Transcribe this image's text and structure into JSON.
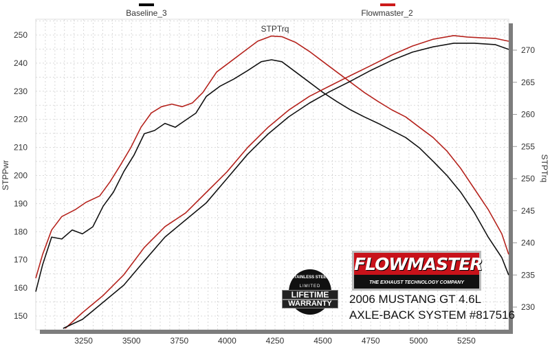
{
  "chart_data": {
    "type": "line",
    "xlabel": "",
    "ylabel_left": "STPPwr",
    "ylabel_right": "STPTrq",
    "annotation": "STPTrq",
    "xlim": [
      3000,
      5470
    ],
    "ylim_left": [
      145,
      255
    ],
    "ylim_right": [
      227,
      275
    ],
    "x_ticks": [
      "3250",
      "3500",
      "3750",
      "4000",
      "4250",
      "4500",
      "4750",
      "5000",
      "5250"
    ],
    "y_ticks_left": [
      "150",
      "160",
      "170",
      "180",
      "190",
      "200",
      "210",
      "220",
      "230",
      "240",
      "250"
    ],
    "y_ticks_right": [
      "230",
      "235",
      "240",
      "245",
      "250",
      "255",
      "260",
      "265",
      "270"
    ],
    "grid": true,
    "legend": {
      "position": "top",
      "entries": [
        {
          "name": "Baseline_3",
          "color": "#000000"
        },
        {
          "name": "Flowmaster_2",
          "color": "#cc1a1a"
        }
      ]
    },
    "series": [
      {
        "name": "Flowmaster_2",
        "quantity": "STPTrq",
        "axis": "right",
        "color": "#b5221c",
        "points": [
          [
            3000,
            234.5
          ],
          [
            3036,
            238.2
          ],
          [
            3083,
            242.0
          ],
          [
            3136,
            244.1
          ],
          [
            3208,
            245.2
          ],
          [
            3262,
            246.3
          ],
          [
            3334,
            247.3
          ],
          [
            3388,
            249.5
          ],
          [
            3442,
            252.1
          ],
          [
            3496,
            254.8
          ],
          [
            3550,
            258.0
          ],
          [
            3603,
            260.2
          ],
          [
            3657,
            261.2
          ],
          [
            3711,
            261.6
          ],
          [
            3765,
            261.2
          ],
          [
            3819,
            261.8
          ],
          [
            3873,
            263.4
          ],
          [
            3945,
            266.6
          ],
          [
            4017,
            268.2
          ],
          [
            4088,
            269.8
          ],
          [
            4160,
            271.4
          ],
          [
            4232,
            272.2
          ],
          [
            4286,
            272.1
          ],
          [
            4358,
            271.2
          ],
          [
            4430,
            269.8
          ],
          [
            4501,
            268.2
          ],
          [
            4573,
            266.6
          ],
          [
            4645,
            265.0
          ],
          [
            4717,
            263.4
          ],
          [
            4789,
            262.0
          ],
          [
            4861,
            260.7
          ],
          [
            4933,
            259.6
          ],
          [
            5004,
            258.0
          ],
          [
            5076,
            256.4
          ],
          [
            5148,
            254.3
          ],
          [
            5220,
            251.6
          ],
          [
            5292,
            248.4
          ],
          [
            5364,
            245.2
          ],
          [
            5435,
            241.4
          ],
          [
            5471,
            238.2
          ]
        ]
      },
      {
        "name": "Baseline_3",
        "quantity": "STPTrq",
        "axis": "right",
        "color": "#111111",
        "points": [
          [
            3000,
            232.4
          ],
          [
            3036,
            236.6
          ],
          [
            3083,
            240.9
          ],
          [
            3136,
            240.6
          ],
          [
            3190,
            242.0
          ],
          [
            3244,
            241.4
          ],
          [
            3298,
            242.5
          ],
          [
            3352,
            245.7
          ],
          [
            3406,
            247.9
          ],
          [
            3460,
            251.1
          ],
          [
            3514,
            253.7
          ],
          [
            3567,
            257.0
          ],
          [
            3621,
            257.5
          ],
          [
            3675,
            258.6
          ],
          [
            3729,
            258.0
          ],
          [
            3783,
            259.1
          ],
          [
            3837,
            260.2
          ],
          [
            3891,
            262.8
          ],
          [
            3963,
            264.4
          ],
          [
            4035,
            265.5
          ],
          [
            4106,
            266.8
          ],
          [
            4178,
            268.2
          ],
          [
            4232,
            268.5
          ],
          [
            4286,
            268.2
          ],
          [
            4358,
            266.6
          ],
          [
            4430,
            265.0
          ],
          [
            4501,
            263.4
          ],
          [
            4573,
            262.0
          ],
          [
            4645,
            260.7
          ],
          [
            4717,
            259.6
          ],
          [
            4789,
            258.6
          ],
          [
            4861,
            257.5
          ],
          [
            4933,
            256.4
          ],
          [
            5004,
            254.8
          ],
          [
            5076,
            252.7
          ],
          [
            5148,
            250.5
          ],
          [
            5220,
            247.9
          ],
          [
            5292,
            244.7
          ],
          [
            5364,
            240.9
          ],
          [
            5435,
            237.7
          ],
          [
            5471,
            235.0
          ]
        ]
      },
      {
        "name": "Flowmaster_2",
        "quantity": "STPPwr",
        "axis": "left",
        "color": "#b5221c",
        "points": [
          [
            3154,
            145.6
          ],
          [
            3244,
            151.2
          ],
          [
            3352,
            157.3
          ],
          [
            3460,
            164.7
          ],
          [
            3567,
            174.4
          ],
          [
            3675,
            181.8
          ],
          [
            3783,
            186.7
          ],
          [
            3891,
            194.0
          ],
          [
            3999,
            201.3
          ],
          [
            4106,
            209.9
          ],
          [
            4214,
            217.2
          ],
          [
            4322,
            223.3
          ],
          [
            4430,
            228.2
          ],
          [
            4537,
            231.9
          ],
          [
            4645,
            235.6
          ],
          [
            4753,
            239.2
          ],
          [
            4861,
            242.9
          ],
          [
            4968,
            246.1
          ],
          [
            5076,
            248.5
          ],
          [
            5184,
            249.8
          ],
          [
            5256,
            249.3
          ],
          [
            5328,
            249.0
          ],
          [
            5400,
            248.8
          ],
          [
            5471,
            247.8
          ]
        ]
      },
      {
        "name": "Baseline_3",
        "quantity": "STPPwr",
        "axis": "left",
        "color": "#111111",
        "points": [
          [
            3143,
            145.6
          ],
          [
            3244,
            148.8
          ],
          [
            3352,
            154.9
          ],
          [
            3460,
            161.0
          ],
          [
            3567,
            169.6
          ],
          [
            3675,
            178.1
          ],
          [
            3783,
            184.2
          ],
          [
            3891,
            190.3
          ],
          [
            3999,
            198.9
          ],
          [
            4106,
            207.5
          ],
          [
            4214,
            214.8
          ],
          [
            4322,
            220.9
          ],
          [
            4430,
            225.8
          ],
          [
            4537,
            229.9
          ],
          [
            4645,
            233.6
          ],
          [
            4753,
            237.5
          ],
          [
            4861,
            241.0
          ],
          [
            4968,
            243.9
          ],
          [
            5076,
            245.8
          ],
          [
            5184,
            247.1
          ],
          [
            5292,
            247.1
          ],
          [
            5400,
            246.6
          ],
          [
            5471,
            244.9
          ]
        ]
      }
    ]
  },
  "logo": {
    "brand": "FLOWMASTER",
    "tagline": "THE EXHAUST TECHNOLOGY COMPANY"
  },
  "badge": {
    "top": "STAINLESS STEEL",
    "limited": "LIMITED",
    "line1": "LIFETIME",
    "line2": "WARRANTY"
  },
  "caption": {
    "line1": "2006 MUSTANG GT 4.6L",
    "line2": "AXLE-BACK SYSTEM #817516"
  },
  "colors": {
    "baseline": "#111111",
    "flowmaster": "#b5221c",
    "frame": "#8a8a8a"
  }
}
